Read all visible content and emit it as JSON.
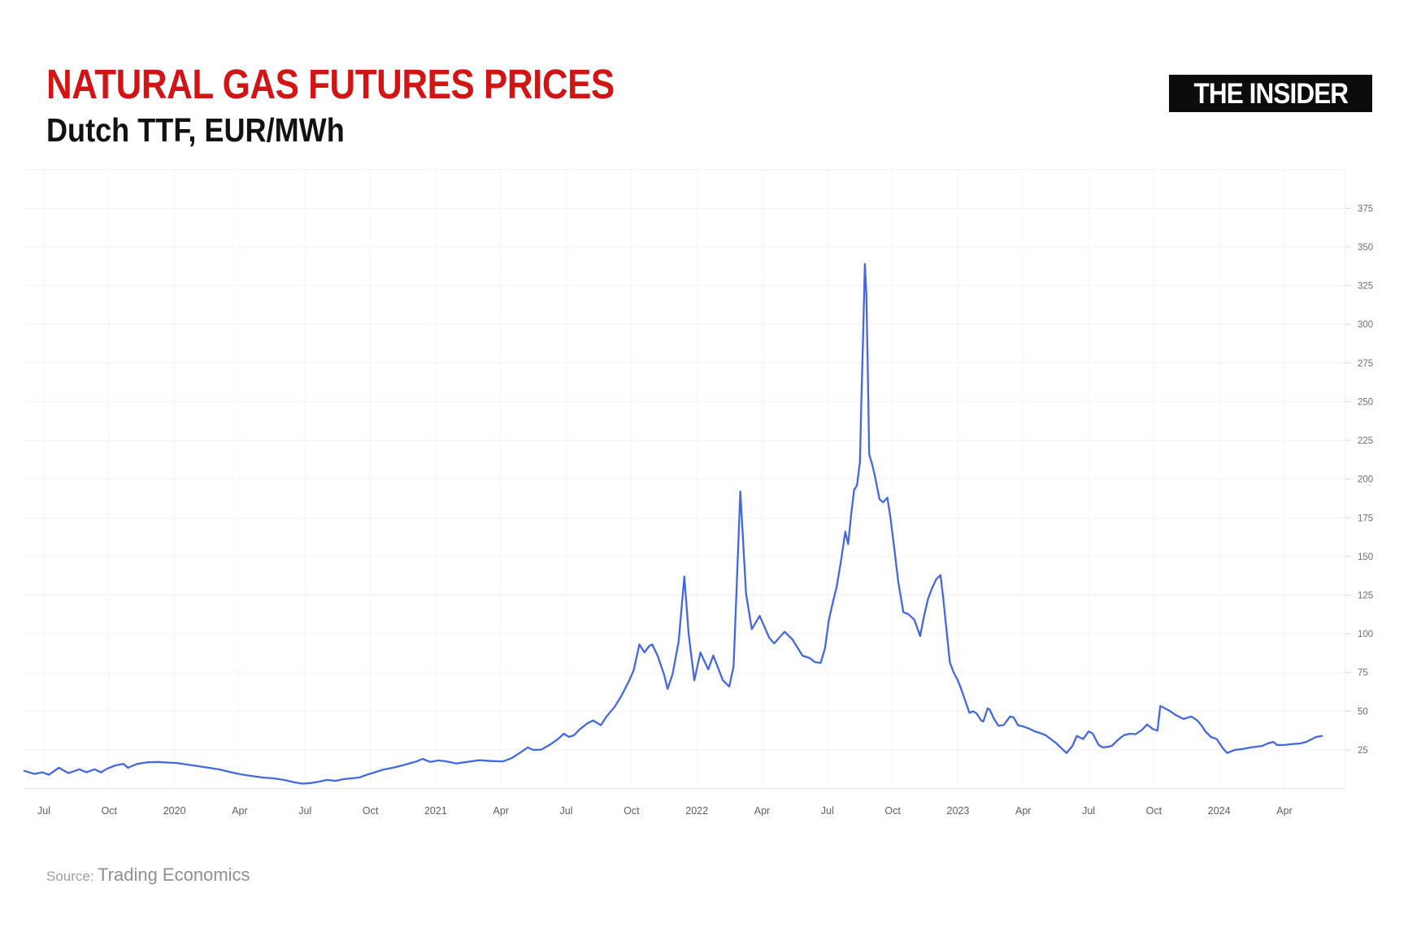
{
  "header": {
    "title": "NATURAL GAS FUTURES PRICES",
    "title_color": "#d21414",
    "subtitle": "Dutch TTF, EUR/MWh",
    "brand_logo": "THE INSIDER",
    "brand_bg": "#0c0c0c",
    "brand_fg": "#ffffff"
  },
  "footer": {
    "source_label": "Source:",
    "source_name": "Trading Economics"
  },
  "chart_data": {
    "type": "line",
    "title": "NATURAL GAS FUTURES PRICES",
    "subtitle": "Dutch TTF, EUR/MWh",
    "xlabel": "",
    "ylabel": "EUR/MWh",
    "source": "Trading Economics",
    "line_color": "#4468e0",
    "grid": true,
    "legend_position": "none",
    "y_axis": {
      "side": "right",
      "min": 0,
      "max": 400,
      "tick_step": 25,
      "tick_labels": [
        25,
        50,
        75,
        100,
        125,
        150,
        175,
        200,
        225,
        250,
        275,
        300,
        325,
        350,
        375
      ]
    },
    "x_axis": {
      "tick_labels": [
        "Jul",
        "Oct",
        "2020",
        "Apr",
        "Jul",
        "Oct",
        "2021",
        "Apr",
        "Jul",
        "Oct",
        "2022",
        "Apr",
        "Jul",
        "Oct",
        "2023",
        "Apr",
        "Jul",
        "Oct",
        "2024",
        "Apr"
      ],
      "tick_interval": "quarter",
      "range_start": "2019-06-04",
      "range_end": "2024-05-23"
    },
    "series": [
      {
        "name": "Dutch TTF natural gas futures price, EUR/MWh",
        "points": [
          [
            "2019-06-04",
            11.5
          ],
          [
            "2019-06-18",
            9.5
          ],
          [
            "2019-06-29",
            10.5
          ],
          [
            "2019-07-08",
            9
          ],
          [
            "2019-07-22",
            13.5
          ],
          [
            "2019-08-05",
            10
          ],
          [
            "2019-08-20",
            12.5
          ],
          [
            "2019-08-30",
            10.5
          ],
          [
            "2019-09-11",
            12.5
          ],
          [
            "2019-09-20",
            10.5
          ],
          [
            "2019-09-29",
            13
          ],
          [
            "2019-10-10",
            15
          ],
          [
            "2019-10-21",
            16
          ],
          [
            "2019-10-27",
            13.5
          ],
          [
            "2019-11-10",
            16
          ],
          [
            "2019-11-24",
            17
          ],
          [
            "2019-12-09",
            17.2
          ],
          [
            "2019-12-23",
            16.8
          ],
          [
            "2020-01-03",
            16.6
          ],
          [
            "2020-01-18",
            15.6
          ],
          [
            "2020-02-02",
            14.6
          ],
          [
            "2020-02-18",
            13.5
          ],
          [
            "2020-03-03",
            12.4
          ],
          [
            "2020-03-17",
            10.8
          ],
          [
            "2020-04-03",
            9.2
          ],
          [
            "2020-04-17",
            8.2
          ],
          [
            "2020-05-02",
            7.2
          ],
          [
            "2020-05-18",
            6.6
          ],
          [
            "2020-06-02",
            5.6
          ],
          [
            "2020-06-17",
            4
          ],
          [
            "2020-06-28",
            3.2
          ],
          [
            "2020-07-09",
            3.6
          ],
          [
            "2020-07-21",
            4.5
          ],
          [
            "2020-08-01",
            5.6
          ],
          [
            "2020-08-13",
            5
          ],
          [
            "2020-08-24",
            6.1
          ],
          [
            "2020-09-05",
            6.6
          ],
          [
            "2020-09-16",
            7.2
          ],
          [
            "2020-09-28",
            9.2
          ],
          [
            "2020-10-09",
            10.8
          ],
          [
            "2020-10-20",
            12.4
          ],
          [
            "2020-11-01",
            13.4
          ],
          [
            "2020-11-12",
            14.6
          ],
          [
            "2020-11-24",
            16.1
          ],
          [
            "2020-12-05",
            17.6
          ],
          [
            "2020-12-13",
            19.2
          ],
          [
            "2020-12-24",
            17.2
          ],
          [
            "2021-01-05",
            18.2
          ],
          [
            "2021-01-16",
            17.6
          ],
          [
            "2021-01-30",
            16.3
          ],
          [
            "2021-02-14",
            17.2
          ],
          [
            "2021-03-01",
            18.4
          ],
          [
            "2021-03-18",
            17.8
          ],
          [
            "2021-04-04",
            17.6
          ],
          [
            "2021-04-16",
            19.7
          ],
          [
            "2021-04-27",
            23
          ],
          [
            "2021-05-08",
            26.6
          ],
          [
            "2021-05-16",
            25
          ],
          [
            "2021-05-27",
            25.2
          ],
          [
            "2021-06-08",
            28.2
          ],
          [
            "2021-06-20",
            32
          ],
          [
            "2021-06-28",
            35.5
          ],
          [
            "2021-07-05",
            33.4
          ],
          [
            "2021-07-12",
            34.5
          ],
          [
            "2021-07-19",
            38
          ],
          [
            "2021-07-31",
            42.3
          ],
          [
            "2021-08-08",
            44
          ],
          [
            "2021-08-19",
            41
          ],
          [
            "2021-08-27",
            46.6
          ],
          [
            "2021-09-08",
            52.9
          ],
          [
            "2021-09-17",
            59.7
          ],
          [
            "2021-09-28",
            69.6
          ],
          [
            "2021-10-04",
            76.5
          ],
          [
            "2021-10-12",
            93.2
          ],
          [
            "2021-10-19",
            88
          ],
          [
            "2021-10-26",
            92.2
          ],
          [
            "2021-10-30",
            93.2
          ],
          [
            "2021-11-07",
            85.9
          ],
          [
            "2021-11-16",
            73.8
          ],
          [
            "2021-11-21",
            64.4
          ],
          [
            "2021-11-28",
            74
          ],
          [
            "2021-12-06",
            95
          ],
          [
            "2021-12-14",
            137
          ],
          [
            "2021-12-20",
            100
          ],
          [
            "2021-12-28",
            70
          ],
          [
            "2022-01-06",
            88
          ],
          [
            "2022-01-17",
            77
          ],
          [
            "2022-01-24",
            86
          ],
          [
            "2022-02-07",
            70
          ],
          [
            "2022-02-16",
            66
          ],
          [
            "2022-02-22",
            79
          ],
          [
            "2022-03-01",
            192
          ],
          [
            "2022-03-09",
            126
          ],
          [
            "2022-03-17",
            103
          ],
          [
            "2022-03-28",
            111.6
          ],
          [
            "2022-04-11",
            97.4
          ],
          [
            "2022-04-18",
            93.8
          ],
          [
            "2022-05-02",
            101.4
          ],
          [
            "2022-05-13",
            96.4
          ],
          [
            "2022-05-27",
            85.9
          ],
          [
            "2022-06-07",
            84.3
          ],
          [
            "2022-06-14",
            81.7
          ],
          [
            "2022-06-22",
            81.2
          ],
          [
            "2022-06-28",
            90.6
          ],
          [
            "2022-07-03",
            109
          ],
          [
            "2022-07-09",
            121
          ],
          [
            "2022-07-14",
            130.5
          ],
          [
            "2022-07-20",
            147
          ],
          [
            "2022-07-26",
            166
          ],
          [
            "2022-07-30",
            158
          ],
          [
            "2022-08-04",
            178
          ],
          [
            "2022-08-08",
            193
          ],
          [
            "2022-08-12",
            196
          ],
          [
            "2022-08-16",
            211
          ],
          [
            "2022-08-18",
            249
          ],
          [
            "2022-08-20",
            284
          ],
          [
            "2022-08-23",
            339
          ],
          [
            "2022-08-25",
            320
          ],
          [
            "2022-08-27",
            273
          ],
          [
            "2022-08-29",
            216
          ],
          [
            "2022-09-03",
            209
          ],
          [
            "2022-09-07",
            201
          ],
          [
            "2022-09-13",
            187
          ],
          [
            "2022-09-18",
            185
          ],
          [
            "2022-09-24",
            188
          ],
          [
            "2022-09-28",
            176
          ],
          [
            "2022-10-03",
            156
          ],
          [
            "2022-10-09",
            133
          ],
          [
            "2022-10-16",
            114
          ],
          [
            "2022-10-23",
            112.7
          ],
          [
            "2022-11-01",
            109
          ],
          [
            "2022-11-09",
            98.5
          ],
          [
            "2022-11-14",
            110.6
          ],
          [
            "2022-11-20",
            122.7
          ],
          [
            "2022-11-26",
            130
          ],
          [
            "2022-12-01",
            135.3
          ],
          [
            "2022-12-07",
            137.9
          ],
          [
            "2022-12-10",
            126.3
          ],
          [
            "2022-12-16",
            100
          ],
          [
            "2022-12-20",
            81.7
          ],
          [
            "2022-12-25",
            75.4
          ],
          [
            "2022-12-31",
            70.2
          ],
          [
            "2023-01-05",
            65
          ],
          [
            "2023-01-11",
            57
          ],
          [
            "2023-01-17",
            49
          ],
          [
            "2023-01-22",
            50
          ],
          [
            "2023-01-27",
            48.6
          ],
          [
            "2023-02-03",
            44
          ],
          [
            "2023-02-06",
            43.4
          ],
          [
            "2023-02-12",
            51.8
          ],
          [
            "2023-02-15",
            51
          ],
          [
            "2023-02-21",
            45
          ],
          [
            "2023-02-27",
            40.7
          ],
          [
            "2023-03-04",
            41
          ],
          [
            "2023-03-13",
            46.6
          ],
          [
            "2023-03-18",
            46
          ],
          [
            "2023-03-24",
            41
          ],
          [
            "2023-04-02",
            40
          ],
          [
            "2023-04-10",
            38.6
          ],
          [
            "2023-04-17",
            37
          ],
          [
            "2023-04-24",
            36
          ],
          [
            "2023-05-02",
            34.5
          ],
          [
            "2023-05-09",
            32
          ],
          [
            "2023-05-17",
            29.2
          ],
          [
            "2023-05-25",
            25.6
          ],
          [
            "2023-05-31",
            23
          ],
          [
            "2023-06-09",
            27.6
          ],
          [
            "2023-06-15",
            34
          ],
          [
            "2023-06-24",
            32
          ],
          [
            "2023-07-01",
            37
          ],
          [
            "2023-07-07",
            35.5
          ],
          [
            "2023-07-15",
            28.2
          ],
          [
            "2023-07-21",
            26.6
          ],
          [
            "2023-07-28",
            27
          ],
          [
            "2023-08-03",
            27.6
          ],
          [
            "2023-08-13",
            32
          ],
          [
            "2023-08-20",
            34.5
          ],
          [
            "2023-08-28",
            35.5
          ],
          [
            "2023-09-06",
            35.2
          ],
          [
            "2023-09-15",
            38
          ],
          [
            "2023-09-22",
            41.5
          ],
          [
            "2023-09-30",
            38.5
          ],
          [
            "2023-10-06",
            37.5
          ],
          [
            "2023-10-10",
            53.4
          ],
          [
            "2023-10-16",
            52
          ],
          [
            "2023-10-24",
            50
          ],
          [
            "2023-11-01",
            47.6
          ],
          [
            "2023-11-12",
            45
          ],
          [
            "2023-11-23",
            46.6
          ],
          [
            "2023-12-01",
            44
          ],
          [
            "2023-12-08",
            40
          ],
          [
            "2023-12-12",
            37
          ],
          [
            "2023-12-20",
            33.4
          ],
          [
            "2023-12-28",
            32
          ],
          [
            "2024-01-04",
            27.6
          ],
          [
            "2024-01-07",
            25.6
          ],
          [
            "2024-01-12",
            23
          ],
          [
            "2024-01-23",
            25
          ],
          [
            "2024-02-04",
            25.6
          ],
          [
            "2024-02-15",
            26.6
          ],
          [
            "2024-03-01",
            27.6
          ],
          [
            "2024-03-08",
            29.2
          ],
          [
            "2024-03-16",
            30.2
          ],
          [
            "2024-03-21",
            28.2
          ],
          [
            "2024-04-01",
            28.2
          ],
          [
            "2024-04-11",
            28.7
          ],
          [
            "2024-04-23",
            29.2
          ],
          [
            "2024-05-01",
            30.2
          ],
          [
            "2024-05-08",
            31.8
          ],
          [
            "2024-05-15",
            33.4
          ],
          [
            "2024-05-23",
            34
          ]
        ]
      }
    ]
  }
}
